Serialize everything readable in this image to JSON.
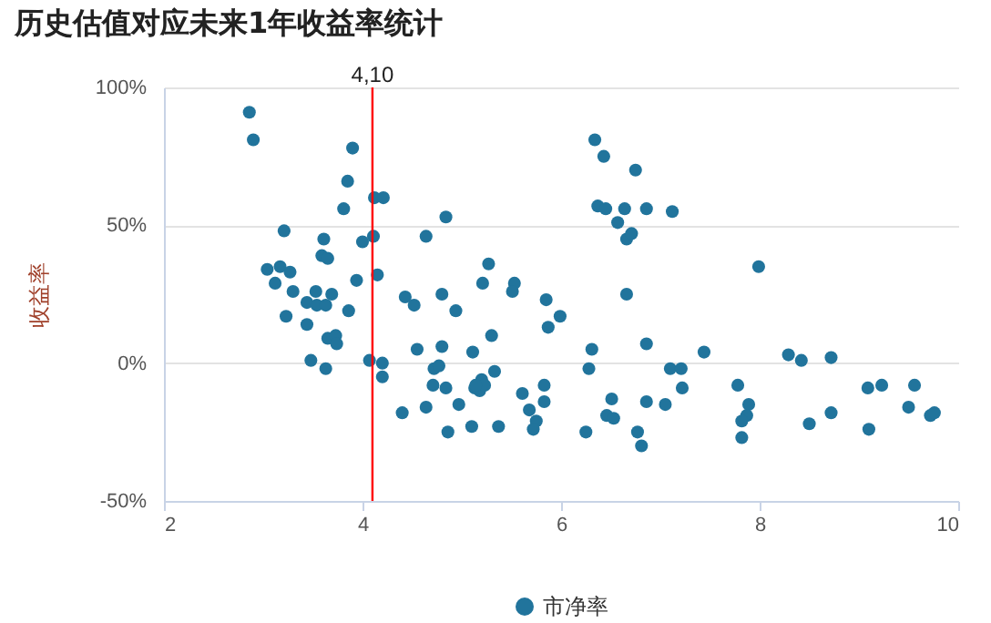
{
  "chart_data": {
    "type": "scatter",
    "title": "历史估值对应未来1年收益率统计",
    "ylabel": "收益率",
    "x": [
      2.86,
      2.9,
      3.9,
      3.85,
      4.12,
      4.21,
      3.81,
      4.84,
      3.21,
      3.61,
      4.11,
      4.0,
      4.64,
      3.59,
      3.65,
      3.04,
      3.17,
      3.27,
      3.12,
      3.94,
      4.15,
      3.3,
      3.53,
      3.69,
      4.43,
      4.52,
      4.8,
      3.44,
      3.54,
      3.63,
      3.86,
      3.23,
      3.44,
      3.65,
      3.73,
      3.74,
      4.8,
      4.55,
      3.48,
      3.63,
      4.07,
      4.2,
      4.2,
      4.72,
      4.71,
      4.84,
      4.77,
      4.4,
      4.64,
      4.86,
      6.34,
      6.43,
      6.75,
      6.37,
      6.45,
      6.64,
      6.86,
      7.12,
      6.57,
      6.66,
      6.71,
      5.27,
      5.21,
      5.53,
      5.51,
      5.85,
      6.66,
      5.99,
      4.94,
      5.87,
      5.3,
      5.11,
      6.31,
      6.86,
      7.44,
      5.33,
      5.2,
      5.13,
      5.18,
      5.23,
      5.14,
      6.28,
      7.1,
      7.21,
      5.83,
      7.22,
      4.97,
      5.61,
      5.68,
      5.83,
      6.51,
      6.86,
      7.05,
      5.75,
      5.72,
      6.46,
      6.53,
      5.1,
      5.37,
      6.25,
      6.77,
      6.81,
      7.99,
      8.29,
      8.42,
      8.72,
      7.78,
      7.89,
      7.87,
      7.82,
      7.82,
      8.5,
      8.72,
      9.09,
      9.23,
      9.56,
      9.1,
      9.5,
      9.72,
      9.76
    ],
    "series": [
      {
        "name": "市净率",
        "color": "#21749c",
        "values": [
          91,
          81,
          78,
          66,
          60,
          60,
          56,
          53,
          48,
          45,
          46,
          44,
          46,
          39,
          38,
          34,
          35,
          33,
          29,
          30,
          32,
          26,
          26,
          25,
          24,
          21,
          25,
          22,
          21,
          21,
          19,
          17,
          14,
          9,
          10,
          7,
          6,
          5,
          1,
          -2,
          1,
          0,
          -5,
          -2,
          -8,
          -9,
          -1,
          -18,
          -16,
          -25,
          81,
          75,
          70,
          57,
          56,
          56,
          56,
          55,
          51,
          45,
          47,
          36,
          29,
          29,
          26,
          23,
          25,
          17,
          19,
          13,
          10,
          4,
          5,
          7,
          4,
          -3,
          -6,
          -9,
          -10,
          -8,
          -8,
          -2,
          -2,
          -2,
          -8,
          -9,
          -15,
          -11,
          -17,
          -14,
          -13,
          -14,
          -15,
          -21,
          -24,
          -19,
          -20,
          -23,
          -23,
          -25,
          -25,
          -30,
          35,
          3,
          1,
          2,
          -8,
          -15,
          -19,
          -21,
          -27,
          -22,
          -18,
          -9,
          -8,
          -8,
          -24,
          -16,
          -19,
          -18
        ]
      }
    ],
    "xlim": [
      2,
      10
    ],
    "xticks": [
      2,
      4,
      6,
      8,
      10
    ],
    "ylim": [
      -50,
      100
    ],
    "yticks": [
      {
        "value": -50,
        "label": "-50%"
      },
      {
        "value": 0,
        "label": "0%"
      },
      {
        "value": 50,
        "label": "50%"
      },
      {
        "value": 100,
        "label": "100%"
      }
    ],
    "grid": "y",
    "legend": "bottom",
    "marker": "circle",
    "ref_lines": [
      {
        "axis": "x",
        "value": 4.1,
        "label": "4,10",
        "color": "#ff0000"
      }
    ]
  }
}
